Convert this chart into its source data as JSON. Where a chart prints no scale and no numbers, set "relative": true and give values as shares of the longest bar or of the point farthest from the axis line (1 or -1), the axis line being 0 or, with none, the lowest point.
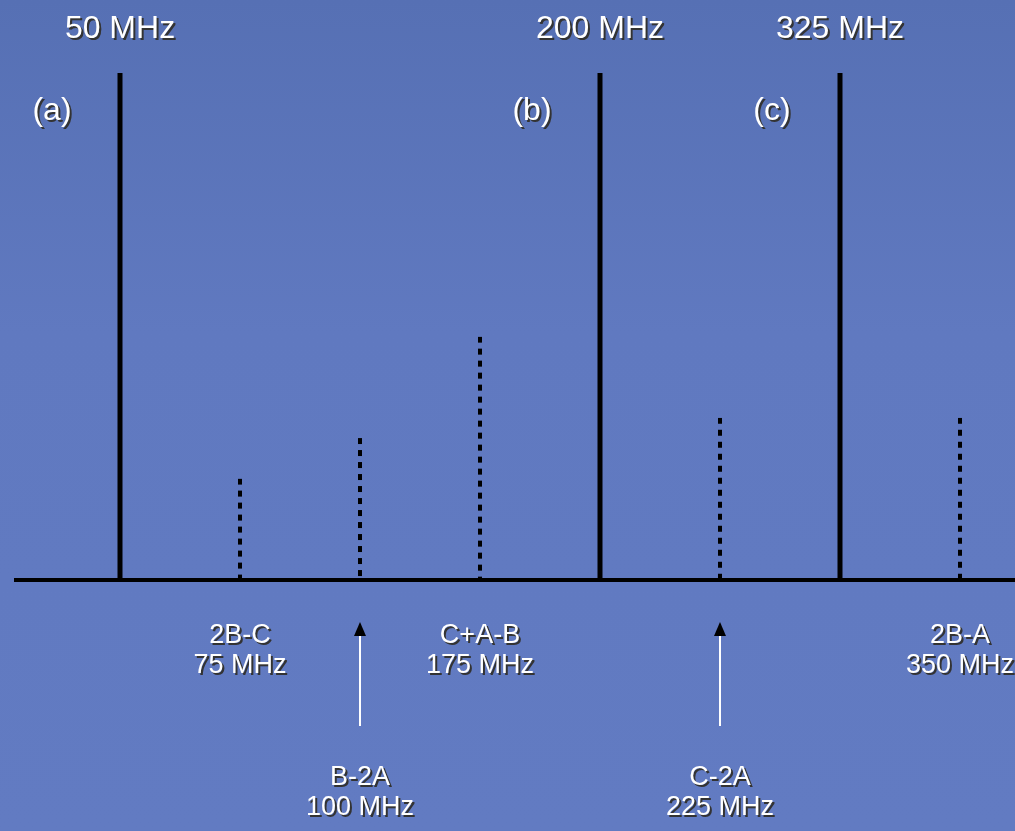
{
  "chart_data": {
    "type": "bar",
    "relative": true,
    "categories": [
      "50 MHz",
      "2B-C\n75 MHz",
      "B-2A\n100 MHz",
      "C+A-B\n175 MHz",
      "200 MHz",
      "C-2A\n225 MHz",
      "325 MHz",
      "2B-A\n350 MHz"
    ],
    "series": [
      {
        "color": "#000000",
        "line_style": "solid",
        "values": [
          1,
          null,
          null,
          null,
          1,
          null,
          1,
          null
        ]
      },
      {
        "color": "#000000",
        "line_style": "dotted",
        "values": [
          null,
          0.2,
          0.28,
          0.48,
          null,
          0.32,
          null,
          0.32
        ]
      }
    ],
    "annotations": [
      "(a)",
      "(b)",
      "(c)"
    ]
  }
}
